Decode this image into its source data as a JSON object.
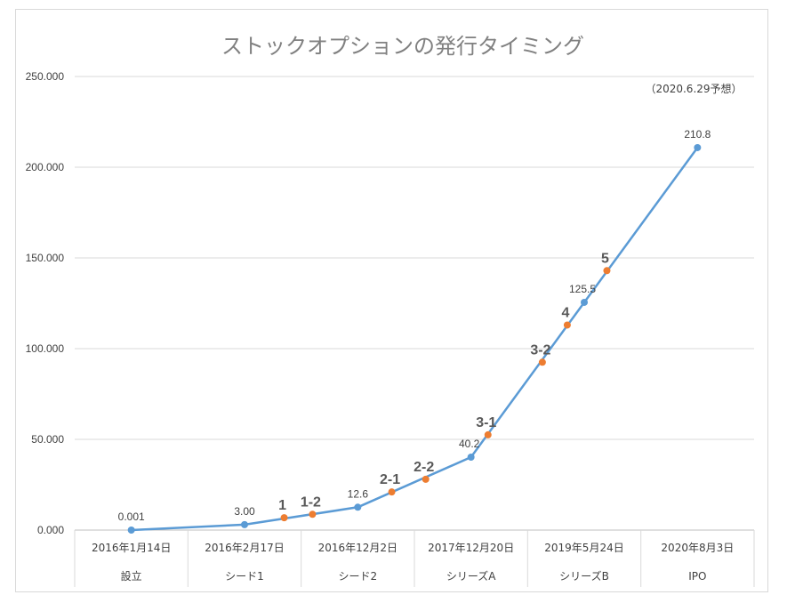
{
  "chart_data": {
    "type": "line",
    "title": "ストックオプションの発行タイミング",
    "note": "（2020.6.29予想）",
    "ylim": [
      0,
      250
    ],
    "yticks": [
      "0.000",
      "50.000",
      "100.000",
      "150.000",
      "200.000",
      "250.000"
    ],
    "grid": true,
    "categories": [
      {
        "date": "2016年1月14日",
        "stage": "設立"
      },
      {
        "date": "2016年2月17日",
        "stage": "シード1"
      },
      {
        "date": "2016年12月2日",
        "stage": "シード2"
      },
      {
        "date": "2017年12月20日",
        "stage": "シリーズA"
      },
      {
        "date": "2019年5月24日",
        "stage": "シリーズB"
      },
      {
        "date": "2020年8月3日",
        "stage": "IPO"
      }
    ],
    "series": [
      {
        "color": "#5b9bd5",
        "values": [
          0.001,
          3.0,
          12.6,
          40.2,
          125.5,
          210.8
        ],
        "labels": [
          "0.001",
          "3.00",
          "12.6",
          "40.2",
          "125.5",
          "210.8"
        ]
      }
    ],
    "grants": [
      {
        "label": "1",
        "x": 1.35,
        "value": 6.8
      },
      {
        "label": "1-2",
        "x": 1.6,
        "value": 8.7
      },
      {
        "label": "2-1",
        "x": 2.3,
        "value": 21
      },
      {
        "label": "2-2",
        "x": 2.6,
        "value": 28
      },
      {
        "label": "3-1",
        "x": 3.15,
        "value": 52.5
      },
      {
        "label": "3-2",
        "x": 3.63,
        "value": 92.5
      },
      {
        "label": "4",
        "x": 3.85,
        "value": 113
      },
      {
        "label": "5",
        "x": 4.2,
        "value": 143
      }
    ],
    "grant_color": "#ed7d31"
  }
}
